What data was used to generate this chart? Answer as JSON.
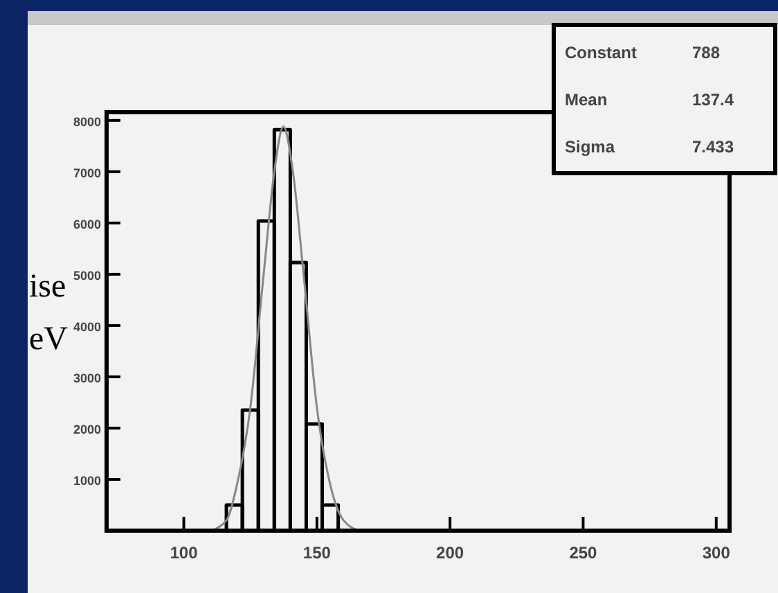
{
  "chart_data": {
    "type": "histogram",
    "bins": [
      116,
      122,
      128,
      134,
      140,
      146,
      152,
      158
    ],
    "values": [
      500,
      2350,
      6040,
      7820,
      5230,
      2080,
      500
    ],
    "color": "#000000",
    "series": [
      {
        "type": "line",
        "color": "#888888",
        "x": [
          110,
          116,
          120,
          125,
          130,
          134,
          137.4,
          141,
          145,
          150,
          155,
          160,
          166
        ],
        "values": [
          0,
          200,
          900,
          2400,
          5000,
          7000,
          7880,
          7000,
          5000,
          2400,
          900,
          200,
          0
        ]
      }
    ],
    "xlim": [
      71,
      305
    ],
    "xticks": [
      100,
      150,
      200,
      250,
      300
    ],
    "ylim": [
      0,
      8160
    ],
    "yticks": [
      1000,
      2000,
      3000,
      4000,
      5000,
      6000,
      7000,
      8000
    ],
    "annotations": [
      "ise",
      "eV",
      "Constant",
      "788",
      "Mean",
      "137.4",
      "Sigma",
      "7.433"
    ]
  }
}
